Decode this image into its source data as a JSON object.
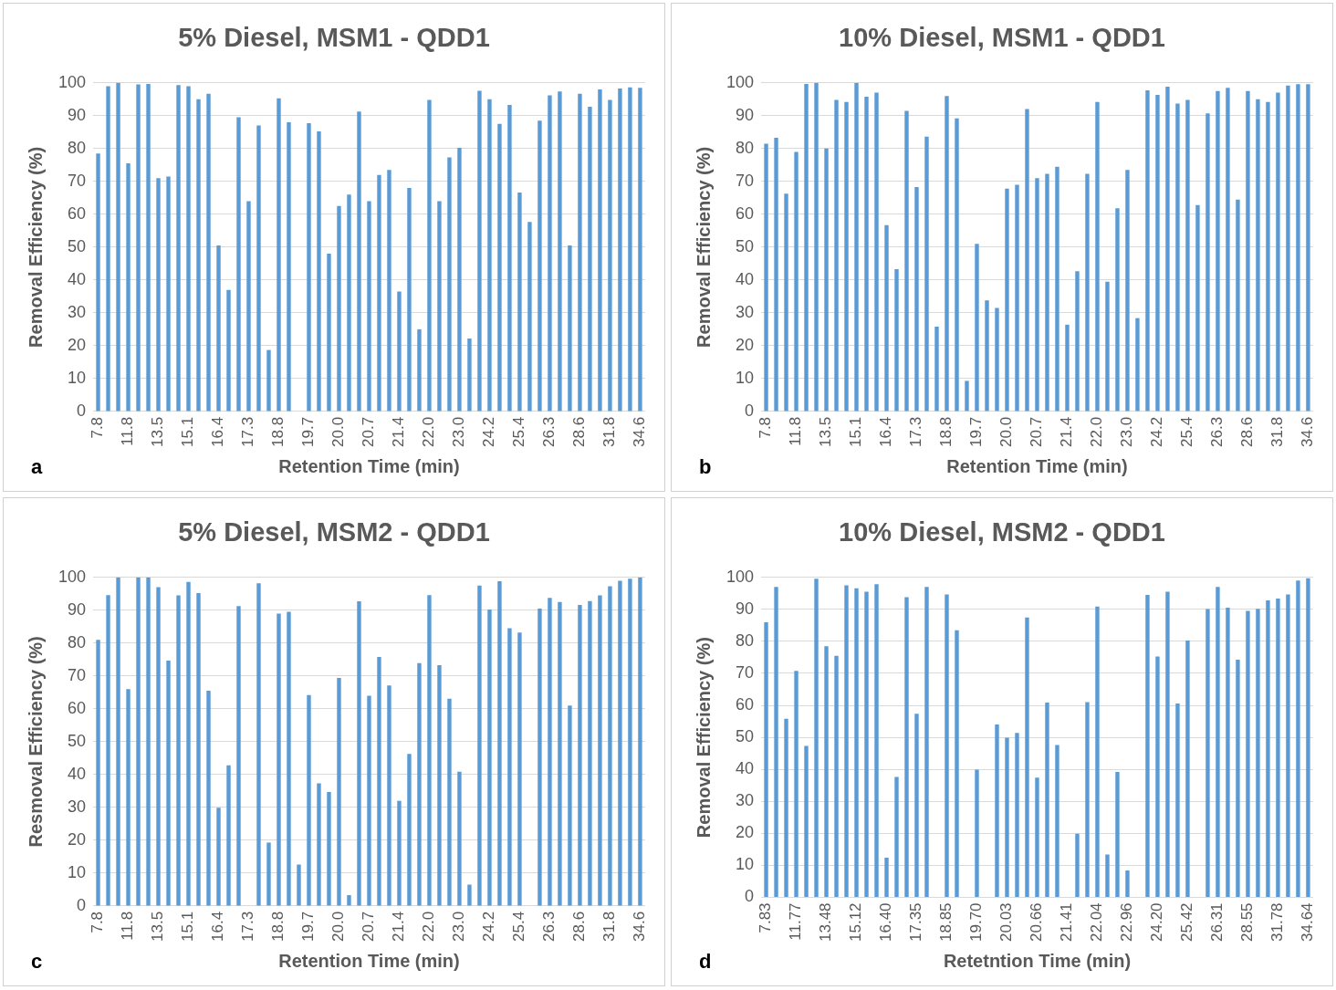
{
  "chart_data": [
    {
      "type": "bar",
      "title": "5% Diesel, MSM1 - QDD1",
      "xlabel": "Retention Time (min)",
      "ylabel": "Removal Efficiency (%)",
      "annotations": [
        "a"
      ],
      "color": "#5b9bd5",
      "grid": "y",
      "legend": false,
      "ylim": [
        0,
        100
      ],
      "yticks": [
        0,
        10,
        20,
        30,
        40,
        50,
        60,
        70,
        80,
        90,
        100
      ],
      "categories": [
        "7.8",
        null,
        null,
        "11.8",
        null,
        null,
        "13.5",
        null,
        null,
        "15.1",
        null,
        null,
        "16.4",
        null,
        null,
        "17.3",
        null,
        null,
        "18.8",
        null,
        null,
        "19.7",
        null,
        null,
        "20.0",
        null,
        null,
        "20.7",
        null,
        null,
        "21.4",
        null,
        null,
        "22.0",
        null,
        null,
        "23.0",
        null,
        null,
        "24.2",
        null,
        null,
        "25.4",
        null,
        null,
        "26.3",
        null,
        null,
        "28.6",
        null,
        null,
        "31.8",
        null,
        null,
        "34.6"
      ],
      "values": [
        78.5,
        99,
        100,
        75.5,
        99.5,
        99.7,
        71,
        71.5,
        99.3,
        99,
        95,
        96.7,
        50.5,
        37,
        89.5,
        64,
        87,
        18.7,
        95.3,
        88,
        null,
        87.7,
        85.2,
        48,
        62.5,
        66,
        91.3,
        64,
        72,
        73.5,
        36.5,
        68,
        25,
        94.8,
        64,
        77.3,
        80.2,
        22.2,
        97.6,
        95,
        87.5,
        93.3,
        66.6,
        57.7,
        88.5,
        96.2,
        97.4,
        50.5,
        96.7,
        92.7,
        98,
        94.8,
        98.3,
        98.6,
        98.5
      ]
    },
    {
      "type": "bar",
      "title": "10% Diesel, MSM1 - QDD1",
      "xlabel": "Retention Time (min)",
      "ylabel": "Removal Efficiency (%)",
      "annotations": [
        "b"
      ],
      "color": "#5b9bd5",
      "grid": "y",
      "legend": false,
      "ylim": [
        0,
        100
      ],
      "yticks": [
        0,
        10,
        20,
        30,
        40,
        50,
        60,
        70,
        80,
        90,
        100
      ],
      "categories": [
        "7.8",
        null,
        null,
        "11.8",
        null,
        null,
        "13.5",
        null,
        null,
        "15.1",
        null,
        null,
        "16.4",
        null,
        null,
        "17.3",
        null,
        null,
        "18.8",
        null,
        null,
        "19.7",
        null,
        null,
        "20.0",
        null,
        null,
        "20.7",
        null,
        null,
        "21.4",
        null,
        null,
        "22.0",
        null,
        null,
        "23.0",
        null,
        null,
        "24.2",
        null,
        null,
        "25.4",
        null,
        null,
        "26.3",
        null,
        null,
        "28.6",
        null,
        null,
        "31.8",
        null,
        null,
        "34.6"
      ],
      "values": [
        81.5,
        83.3,
        66.3,
        79,
        99.7,
        100,
        80,
        94.8,
        94.2,
        100,
        95.8,
        97,
        56.7,
        43.3,
        91.5,
        68.3,
        83.6,
        25.8,
        96,
        89.2,
        9.3,
        51,
        33.8,
        31.5,
        67.8,
        69,
        92,
        71,
        72.3,
        74.5,
        26.4,
        42.7,
        72.3,
        94.2,
        39.5,
        61.8,
        73.5,
        28.4,
        97.7,
        96.3,
        98.8,
        93.7,
        94.8,
        62.8,
        90.7,
        97.5,
        98.5,
        64.5,
        97.5,
        95,
        94.2,
        97,
        99.2,
        99.6,
        99.6
      ]
    },
    {
      "type": "bar",
      "title": "5% Diesel, MSM2 - QDD1",
      "xlabel": "Retention Time (min)",
      "ylabel": "Resmoval Efficiency (%)",
      "annotations": [
        "c"
      ],
      "color": "#5b9bd5",
      "grid": "y",
      "legend": false,
      "ylim": [
        0,
        100
      ],
      "yticks": [
        0,
        10,
        20,
        30,
        40,
        50,
        60,
        70,
        80,
        90,
        100
      ],
      "categories": [
        "7.8",
        null,
        null,
        "11.8",
        null,
        null,
        "13.5",
        null,
        null,
        "15.1",
        null,
        null,
        "16.4",
        null,
        null,
        "17.3",
        null,
        null,
        "18.8",
        null,
        null,
        "19.7",
        null,
        null,
        "20.0",
        null,
        null,
        "20.7",
        null,
        null,
        "21.4",
        null,
        null,
        "22.0",
        null,
        null,
        "23.0",
        null,
        null,
        "24.2",
        null,
        null,
        "25.4",
        null,
        null,
        "26.3",
        null,
        null,
        "28.6",
        null,
        null,
        "31.8",
        null,
        null,
        "34.6"
      ],
      "values": [
        81,
        94.6,
        100,
        66,
        100,
        100,
        97,
        74.7,
        94.5,
        98.6,
        95.2,
        65.5,
        29.9,
        42.8,
        91.3,
        null,
        98.2,
        19.3,
        89,
        89.5,
        12.6,
        64.2,
        37.3,
        34.7,
        69.4,
        3.3,
        92.7,
        64,
        75.8,
        67.1,
        32,
        46.3,
        73.9,
        94.6,
        73.3,
        63.1,
        40.9,
        6.5,
        97.5,
        90.2,
        98.8,
        84.5,
        83.2,
        null,
        90.5,
        93.8,
        92.5,
        61,
        91.6,
        92.8,
        94.5,
        97.3,
        99,
        99.6,
        100
      ]
    },
    {
      "type": "bar",
      "title": "10% Diesel, MSM2 - QDD1",
      "xlabel": "Retetntion Time (min)",
      "ylabel": "Removal Efficiency (%)",
      "annotations": [
        "d"
      ],
      "color": "#5b9bd5",
      "grid": "y",
      "legend": false,
      "ylim": [
        0,
        100
      ],
      "yticks": [
        0,
        10,
        20,
        30,
        40,
        50,
        60,
        70,
        80,
        90,
        100
      ],
      "categories": [
        "7.83",
        null,
        null,
        "11.77",
        null,
        null,
        "13.48",
        null,
        null,
        "15.12",
        null,
        null,
        "16.40",
        null,
        null,
        "17.35",
        null,
        null,
        "18.85",
        null,
        null,
        "19.70",
        null,
        null,
        "20.03",
        null,
        null,
        "20.66",
        null,
        null,
        "21.41",
        null,
        null,
        "22.04",
        null,
        null,
        "22.96",
        null,
        null,
        "24.20",
        null,
        null,
        "25.42",
        null,
        null,
        "26.31",
        null,
        null,
        "28.55",
        null,
        null,
        "31.78",
        null,
        null,
        "34.64"
      ],
      "values": [
        86,
        97,
        55.8,
        70.8,
        47.3,
        99.6,
        78.5,
        75.5,
        97.5,
        96.6,
        95.5,
        97.9,
        12.4,
        37.6,
        93.8,
        57.4,
        97,
        null,
        94.7,
        83.5,
        null,
        39.9,
        null,
        54,
        49.9,
        51.4,
        87.5,
        37.4,
        60.9,
        47.6,
        null,
        19.9,
        61,
        90.9,
        13.4,
        39.2,
        8.4,
        null,
        94.5,
        75.3,
        95.5,
        60.6,
        80.3,
        null,
        90.1,
        97,
        90.5,
        74.3,
        89.5,
        90.2,
        92.8,
        93.4,
        94.7,
        99,
        99.7
      ]
    }
  ]
}
